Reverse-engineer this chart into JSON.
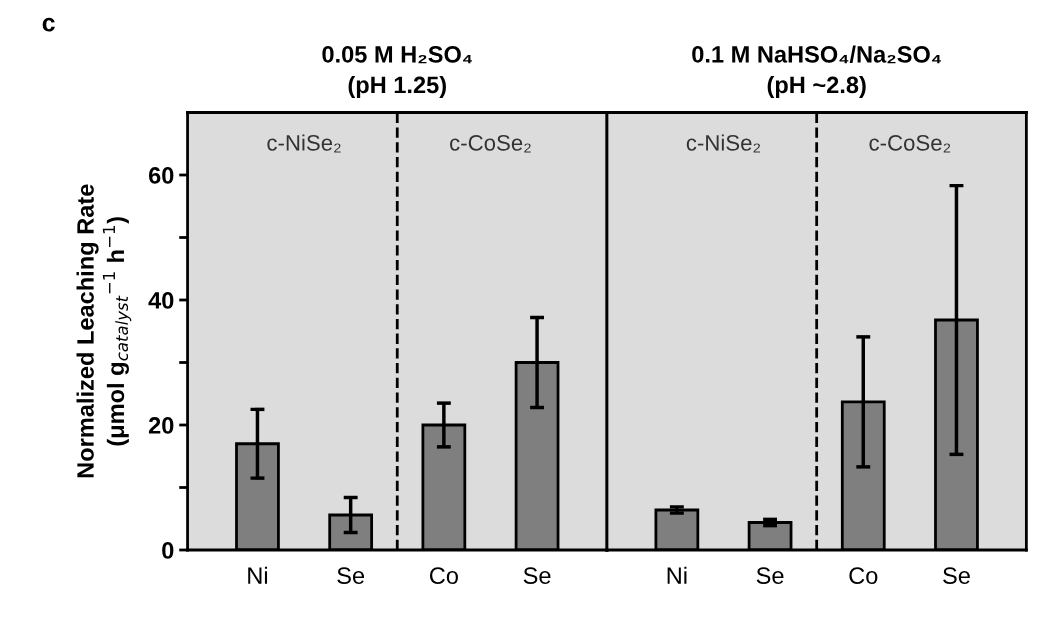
{
  "chart_data": [
    {
      "type": "bar",
      "title": "0.05 M H₂SO₄\n(pH 1.25)",
      "ylabel": "Normalized Leaching Rate\n(μmol g$_{catalyst}$$^{−1}$ h$^{−1}$)",
      "categories": [
        "Ni",
        "Se",
        "Co",
        "Se"
      ],
      "series": [
        {
          "color": "#7f7f7f",
          "values": [
            17,
            5.6,
            20,
            30
          ],
          "errors": [
            5.5,
            2.8,
            3.5,
            7.2
          ]
        }
      ],
      "ylim": [
        0,
        70
      ],
      "yticks": [
        0,
        {
          "value": 10,
          "label": null
        },
        20,
        {
          "value": 30,
          "label": null
        },
        40,
        {
          "value": 50,
          "label": null
        },
        60
      ],
      "annotations": [
        "c",
        "c-NiSe₂",
        "c-CoSe₂"
      ],
      "grid": false,
      "legend": false
    },
    {
      "type": "bar",
      "title": "0.1 M NaHSO₄/Na₂SO₄\n(pH ~2.8)",
      "categories": [
        "Ni",
        "Se",
        "Co",
        "Se"
      ],
      "series": [
        {
          "color": "#7f7f7f",
          "values": [
            6.4,
            4.4,
            23.7,
            36.8
          ],
          "errors": [
            0.5,
            0.5,
            10.4,
            21.5
          ]
        }
      ],
      "ylim": [
        0,
        70
      ],
      "annotations": [
        "c-NiSe₂",
        "c-CoSe₂"
      ],
      "tick_labels": "x",
      "grid": false,
      "legend": false
    }
  ]
}
